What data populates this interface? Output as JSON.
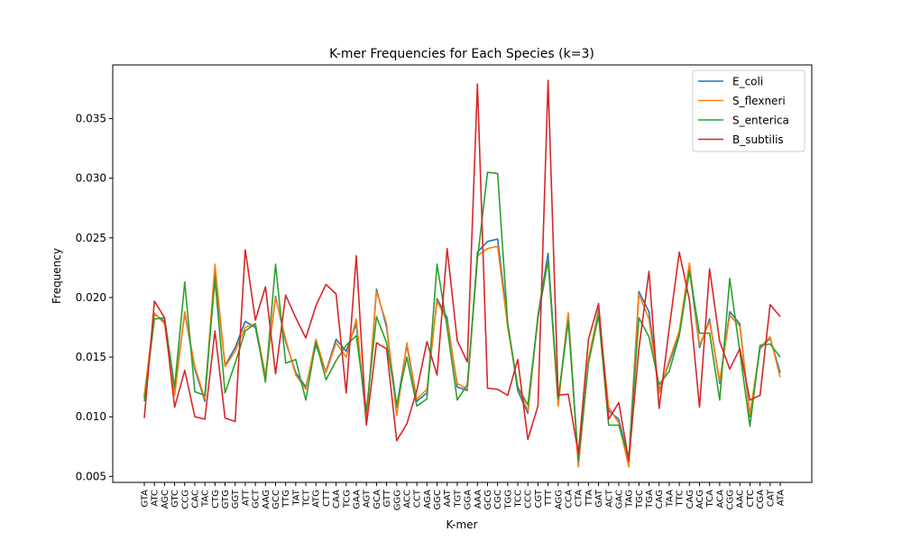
{
  "chart_data": {
    "type": "line",
    "title": "K-mer Frequencies for Each Species (k=3)",
    "xlabel": "K-mer",
    "ylabel": "Frequency",
    "ylim": [
      0.0045,
      0.0395
    ],
    "yticks": [
      0.005,
      0.01,
      0.015,
      0.02,
      0.025,
      0.03,
      0.035
    ],
    "ytick_labels": [
      "0.005",
      "0.010",
      "0.015",
      "0.020",
      "0.025",
      "0.030",
      "0.035"
    ],
    "grid": false,
    "legend_position": "top-right",
    "categories": [
      "GTA",
      "ATC",
      "AGC",
      "GTC",
      "CCG",
      "CAC",
      "TAC",
      "CTG",
      "GTG",
      "GGT",
      "ATT",
      "GCT",
      "AAG",
      "GCC",
      "TTG",
      "TAT",
      "TCT",
      "ATG",
      "CTT",
      "CAA",
      "TCG",
      "GAA",
      "AGT",
      "GCA",
      "GTT",
      "GGG",
      "ACC",
      "CCT",
      "AGA",
      "GGC",
      "AAT",
      "TGT",
      "GGA",
      "AAA",
      "GCG",
      "CGC",
      "TGG",
      "TCC",
      "CCC",
      "CGT",
      "TTT",
      "AGG",
      "CCA",
      "CTA",
      "TTA",
      "GAT",
      "ACT",
      "GAC",
      "TAG",
      "TGC",
      "TGA",
      "CAG",
      "TAA",
      "TTC",
      "CAG",
      "ACG",
      "TCA",
      "ACA",
      "CGG",
      "AAC",
      "CTC",
      "CGA",
      "CAT",
      "ATA"
    ],
    "series": [
      {
        "name": "E_coli",
        "color": "#1f77b4",
        "values": [
          0.0116,
          0.0186,
          0.018,
          0.0122,
          0.0187,
          0.014,
          0.0113,
          0.0222,
          0.0143,
          0.0158,
          0.018,
          0.0175,
          0.0133,
          0.0201,
          0.0163,
          0.0137,
          0.0125,
          0.016,
          0.0138,
          0.0165,
          0.0155,
          0.0178,
          0.0095,
          0.0207,
          0.0175,
          0.0108,
          0.016,
          0.0113,
          0.012,
          0.0199,
          0.0183,
          0.0125,
          0.0122,
          0.0238,
          0.0247,
          0.0249,
          0.0178,
          0.0122,
          0.0103,
          0.0185,
          0.0237,
          0.0112,
          0.0187,
          0.006,
          0.0147,
          0.019,
          0.0105,
          0.0098,
          0.0063,
          0.0205,
          0.0188,
          0.0122,
          0.0145,
          0.017,
          0.0225,
          0.0158,
          0.0182,
          0.0128,
          0.0188,
          0.0178,
          0.01,
          0.0157,
          0.0166,
          0.0137
        ]
      },
      {
        "name": "S_flexneri",
        "color": "#ff7f0e",
        "values": [
          0.0118,
          0.0187,
          0.0178,
          0.0118,
          0.0188,
          0.0142,
          0.0115,
          0.0228,
          0.0142,
          0.0155,
          0.0175,
          0.0178,
          0.0135,
          0.02,
          0.0165,
          0.0135,
          0.0123,
          0.0165,
          0.0137,
          0.0162,
          0.015,
          0.0182,
          0.0097,
          0.0205,
          0.0178,
          0.0101,
          0.0162,
          0.0115,
          0.0123,
          0.0197,
          0.018,
          0.0128,
          0.0123,
          0.0235,
          0.0241,
          0.0243,
          0.0175,
          0.0125,
          0.0105,
          0.0183,
          0.0232,
          0.0109,
          0.0187,
          0.0058,
          0.0149,
          0.0188,
          0.0108,
          0.0095,
          0.0058,
          0.0203,
          0.0182,
          0.012,
          0.0147,
          0.0172,
          0.0229,
          0.016,
          0.018,
          0.013,
          0.0185,
          0.0176,
          0.0102,
          0.0158,
          0.0167,
          0.0133
        ]
      },
      {
        "name": "S_enterica",
        "color": "#2ca02c",
        "values": [
          0.0113,
          0.0182,
          0.0183,
          0.0125,
          0.0213,
          0.0121,
          0.0118,
          0.0215,
          0.012,
          0.0145,
          0.0172,
          0.0178,
          0.0129,
          0.0228,
          0.0145,
          0.0148,
          0.0114,
          0.0163,
          0.0131,
          0.0147,
          0.016,
          0.0168,
          0.0105,
          0.0184,
          0.0162,
          0.011,
          0.015,
          0.0109,
          0.0115,
          0.0228,
          0.0175,
          0.0114,
          0.0127,
          0.0232,
          0.0305,
          0.0304,
          0.0178,
          0.0125,
          0.011,
          0.0183,
          0.0231,
          0.0115,
          0.018,
          0.0063,
          0.0145,
          0.0185,
          0.0093,
          0.0093,
          0.0066,
          0.0183,
          0.0167,
          0.0127,
          0.0138,
          0.0168,
          0.0222,
          0.017,
          0.017,
          0.0114,
          0.0216,
          0.0155,
          0.0092,
          0.016,
          0.0161,
          0.015
        ]
      },
      {
        "name": "B_subtilis",
        "color": "#d62728",
        "values": [
          0.0099,
          0.0197,
          0.0183,
          0.0108,
          0.0139,
          0.01,
          0.0098,
          0.0172,
          0.0099,
          0.0096,
          0.024,
          0.0181,
          0.0209,
          0.0136,
          0.0202,
          0.0183,
          0.0166,
          0.0193,
          0.0211,
          0.0203,
          0.012,
          0.0235,
          0.0093,
          0.0162,
          0.0157,
          0.008,
          0.0094,
          0.0122,
          0.0163,
          0.0135,
          0.0241,
          0.0164,
          0.0146,
          0.0379,
          0.0124,
          0.0123,
          0.0118,
          0.0148,
          0.0081,
          0.0109,
          0.0382,
          0.0118,
          0.0119,
          0.0069,
          0.0165,
          0.0195,
          0.0098,
          0.0112,
          0.0063,
          0.0157,
          0.0222,
          0.0107,
          0.0174,
          0.0238,
          0.0198,
          0.0108,
          0.0224,
          0.0163,
          0.014,
          0.0157,
          0.0114,
          0.0118,
          0.0194,
          0.0184
        ]
      }
    ]
  }
}
